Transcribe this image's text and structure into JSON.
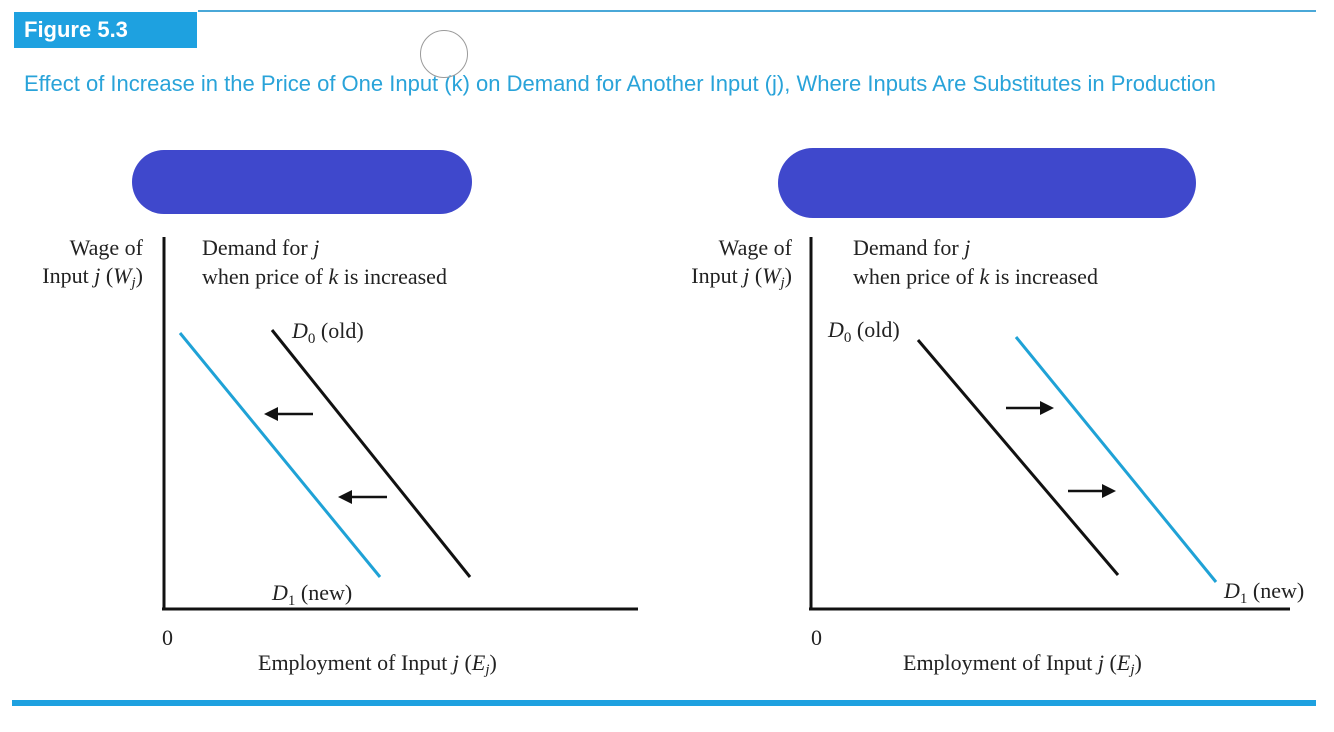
{
  "figure": {
    "label": "Figure 5.3",
    "title": "Effect of Increase in the Price of One Input (k) on Demand for Another Input (j), Where Inputs Are Substitutes in Production"
  },
  "colors": {
    "accent": "#1ea1e0",
    "title": "#29a3d9",
    "new_curve": "#1fa2d6",
    "old_curve": "#111111",
    "redaction": "#3f48cc"
  },
  "panels": [
    {
      "y_label_line1": "Wage of",
      "y_label_line2_prefix": "Input ",
      "y_label_var": "j",
      "y_label_sym": "W",
      "y_label_sub": "j",
      "heading_line1_prefix": "Demand for ",
      "heading_line1_var": "j",
      "heading_line2_prefix": "when price of ",
      "heading_line2_var": "k",
      "heading_line2_suffix": " is increased",
      "old_curve_sym": "D",
      "old_curve_sub": "0",
      "old_curve_tag": "(old)",
      "new_curve_sym": "D",
      "new_curve_sub": "1",
      "new_curve_tag": "(new)",
      "origin": "0",
      "x_label_prefix": "Employment of Input ",
      "x_label_var": "j",
      "x_label_sym": "E",
      "x_label_sub": "j",
      "shift_direction": "left"
    },
    {
      "y_label_line1": "Wage of",
      "y_label_line2_prefix": "Input ",
      "y_label_var": "j",
      "y_label_sym": "W",
      "y_label_sub": "j",
      "heading_line1_prefix": "Demand for ",
      "heading_line1_var": "j",
      "heading_line2_prefix": "when price of ",
      "heading_line2_var": "k",
      "heading_line2_suffix": " is increased",
      "old_curve_sym": "D",
      "old_curve_sub": "0",
      "old_curve_tag": "(old)",
      "new_curve_sym": "D",
      "new_curve_sub": "1",
      "new_curve_tag": "(new)",
      "origin": "0",
      "x_label_prefix": "Employment of Input ",
      "x_label_var": "j",
      "x_label_sym": "E",
      "x_label_sub": "j",
      "shift_direction": "right"
    }
  ]
}
